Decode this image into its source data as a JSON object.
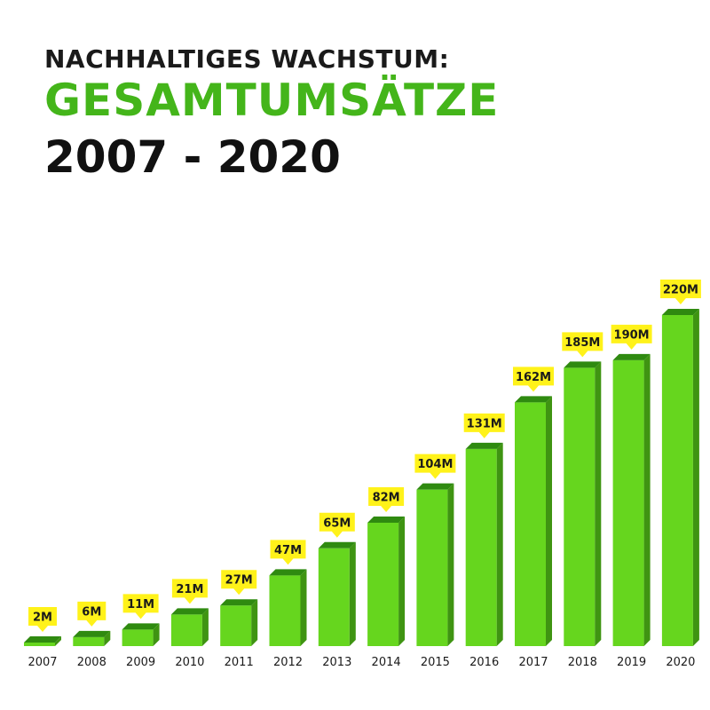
{
  "header": {
    "line1": "NACHHALTIGES WACHSTUM:",
    "line2": "GESAMTUMSÄTZE",
    "line3": "2007 - 2020"
  },
  "colors": {
    "bar_front": "#66d61e",
    "bar_side": "#3f9412",
    "bar_top": "#2f8a10",
    "label_bg": "#fff21a",
    "title_green": "#44b51a"
  },
  "chart_data": {
    "type": "bar",
    "title": "NACHHALTIGES WACHSTUM: GESAMTUMSÄTZE 2007 - 2020",
    "categories": [
      "2007",
      "2008",
      "2009",
      "2010",
      "2011",
      "2012",
      "2013",
      "2014",
      "2015",
      "2016",
      "2017",
      "2018",
      "2019",
      "2020"
    ],
    "values": [
      2,
      6,
      11,
      21,
      27,
      47,
      65,
      82,
      104,
      131,
      162,
      185,
      190,
      220
    ],
    "data_labels": [
      "2M",
      "6M",
      "11M",
      "21M",
      "27M",
      "47M",
      "65M",
      "82M",
      "104M",
      "131M",
      "162M",
      "185M",
      "190M",
      "220M"
    ],
    "unit": "M",
    "xlabel": "",
    "ylabel": "",
    "ylim": [
      0,
      220
    ],
    "grid": false,
    "legend": "none"
  }
}
